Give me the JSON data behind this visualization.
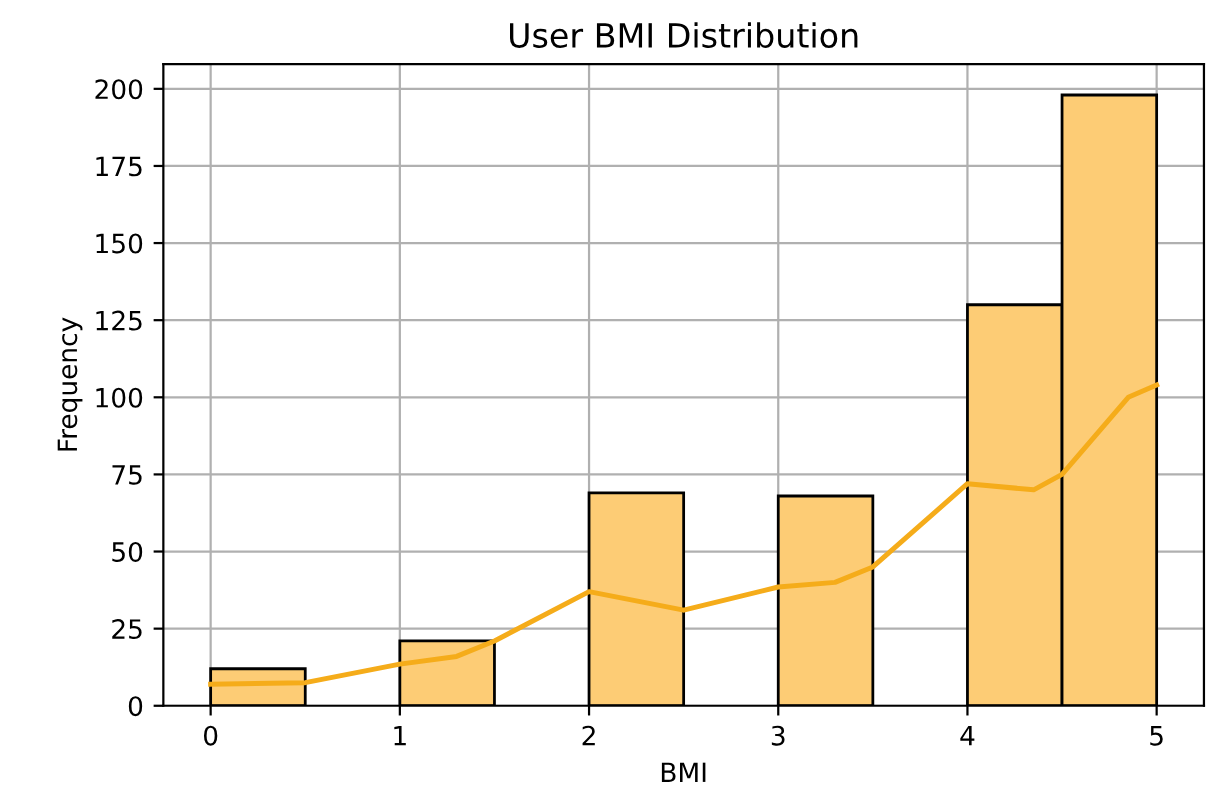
{
  "chart_data": {
    "type": "histogram",
    "title": "User BMI Distribution",
    "xlabel": "BMI",
    "ylabel": "Frequency",
    "bins": [
      0,
      0.5,
      1,
      1.5,
      2,
      2.5,
      3,
      3.5,
      4,
      4.5,
      5
    ],
    "values": [
      12,
      0,
      21,
      0,
      69,
      0,
      68,
      0,
      130,
      198
    ],
    "color": "#fdcc75",
    "series": [
      {
        "type": "line",
        "color": "#f5ac1a",
        "x": [
          0,
          0.5,
          1,
          1.3,
          1.5,
          2,
          2.5,
          3,
          3.3,
          3.5,
          4,
          4.35,
          4.5,
          4.85,
          5
        ],
        "values": [
          7,
          7.5,
          13.5,
          16,
          21,
          37,
          31,
          38.5,
          40,
          45,
          72,
          70,
          75,
          100,
          104
        ]
      }
    ],
    "xlim": [
      -0.25,
      5.25
    ],
    "ylim": [
      0,
      208
    ],
    "xticks": [
      0,
      1,
      2,
      3,
      4,
      5
    ],
    "yticks": [
      0,
      25,
      50,
      75,
      100,
      125,
      150,
      175,
      200
    ],
    "grid": true
  }
}
